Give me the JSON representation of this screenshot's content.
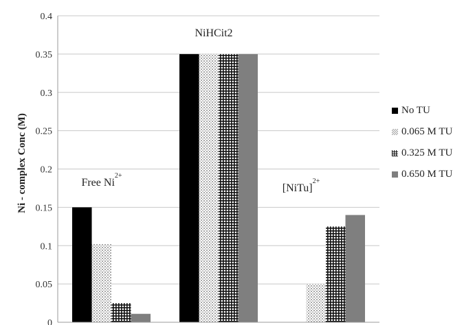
{
  "chart_data": {
    "type": "bar",
    "title": "",
    "xlabel": "",
    "ylabel": "Ni - complex Conc (M)",
    "ylim": [
      0,
      0.4
    ],
    "yticks": [
      "0",
      "0.05",
      "0.1",
      "0.15",
      "0.2",
      "0.25",
      "0.3",
      "0.35",
      "0.4"
    ],
    "grid": true,
    "legend_position": "right",
    "categories": [
      {
        "name": "Free Ni",
        "superscript": "2+"
      },
      {
        "name": "NiHCit2",
        "superscript": ""
      },
      {
        "name": "[NiTu]",
        "superscript": "2+"
      }
    ],
    "series": [
      {
        "name": "No TU",
        "values": [
          0.15,
          0.35,
          0.0
        ],
        "fill": "solid",
        "color": "#000000"
      },
      {
        "name": "0.065 M TU",
        "values": [
          0.102,
          0.35,
          0.05
        ],
        "fill": "fine-dots",
        "color": "#bdbdbd"
      },
      {
        "name": "0.325 M TU",
        "values": [
          0.025,
          0.35,
          0.125
        ],
        "fill": "grid",
        "color": "#1a1a1a"
      },
      {
        "name": "0.650 M TU",
        "values": [
          0.011,
          0.35,
          0.14
        ],
        "fill": "solid",
        "color": "#7f7f7f"
      }
    ]
  }
}
